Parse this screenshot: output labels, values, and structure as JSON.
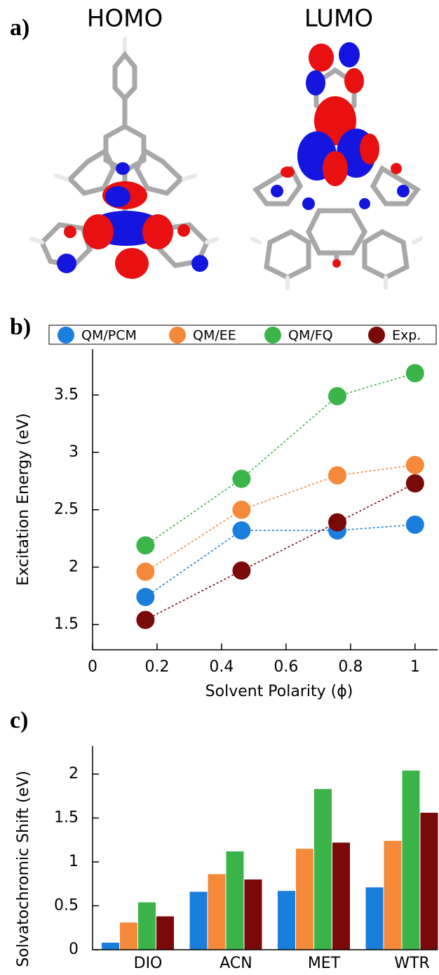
{
  "figure": {
    "panel_labels": [
      "a)",
      "b)",
      "c)"
    ],
    "orbital_labels": [
      "HOMO",
      "LUMO"
    ]
  },
  "chart_data": [
    {
      "type": "scatter",
      "x_label": "Solvent Polarity (ϕ)",
      "y_label": "Excitation Energy (eV)",
      "x": [
        0.164,
        0.462,
        0.759,
        1.0
      ],
      "series": [
        {
          "name": "QM/PCM",
          "color": "#1a7fdc",
          "values": [
            1.74,
            2.32,
            2.32,
            2.37
          ]
        },
        {
          "name": "QM/EE",
          "color": "#f5893a",
          "values": [
            1.96,
            2.5,
            2.8,
            2.89
          ]
        },
        {
          "name": "QM/FQ",
          "color": "#3bb54a",
          "values": [
            2.19,
            2.77,
            3.49,
            3.69
          ]
        },
        {
          "name": "Exp.",
          "color": "#7a0a0a",
          "values": [
            1.54,
            1.97,
            2.39,
            2.73
          ]
        }
      ],
      "xlim": [
        0,
        1.07
      ],
      "xticks": [
        0,
        0.2,
        0.4,
        0.6,
        0.8,
        1
      ],
      "ylim": [
        1.28,
        3.9
      ],
      "yticks": [
        1.5,
        2,
        2.5,
        3,
        3.5
      ],
      "line_style": "dotted",
      "legend": "top"
    },
    {
      "type": "bar",
      "y_label": "Solvatochromic Shift (eV)",
      "categories": [
        "DIO",
        "ACN",
        "MET",
        "WTR"
      ],
      "series": [
        {
          "color": "#1a7fdc",
          "values": [
            0.08,
            0.66,
            0.67,
            0.71
          ]
        },
        {
          "color": "#f5893a",
          "values": [
            0.31,
            0.86,
            1.15,
            1.24
          ]
        },
        {
          "color": "#3bb54a",
          "values": [
            0.54,
            1.12,
            1.83,
            2.04
          ]
        },
        {
          "color": "#7a0a0a",
          "values": [
            0.38,
            0.8,
            1.22,
            1.56
          ]
        }
      ],
      "ylim": [
        0,
        2.32
      ],
      "yticks": [
        0,
        0.5,
        1,
        1.5,
        2
      ]
    }
  ]
}
